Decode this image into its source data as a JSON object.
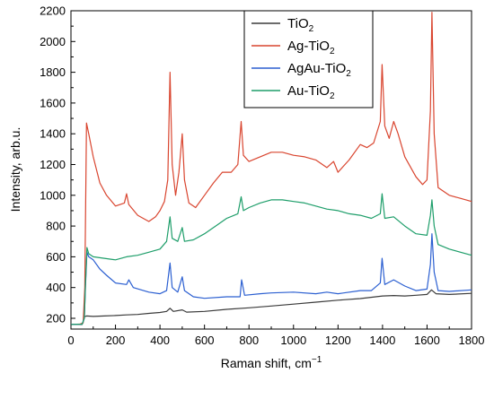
{
  "chart_data": {
    "type": "line",
    "title": "",
    "xlabel": "Raman shift, cm",
    "xlabel_superscript": "−1",
    "ylabel": "Intensity, arb.u.",
    "xlim": [
      0,
      1800
    ],
    "ylim": [
      130,
      2200
    ],
    "x_ticks": [
      0,
      200,
      400,
      600,
      800,
      1000,
      1200,
      1400,
      1600,
      1800
    ],
    "y_ticks": [
      200,
      400,
      600,
      800,
      1000,
      1200,
      1400,
      1600,
      1800,
      2000,
      2200
    ],
    "grid": false,
    "legend_position": "top-right",
    "series": [
      {
        "name": "TiO",
        "name_subscript": "2",
        "color": "#3b3b3b",
        "points": [
          [
            0,
            160
          ],
          [
            50,
            160
          ],
          [
            55,
            175
          ],
          [
            60,
            210
          ],
          [
            70,
            215
          ],
          [
            100,
            212
          ],
          [
            150,
            215
          ],
          [
            200,
            218
          ],
          [
            250,
            222
          ],
          [
            300,
            225
          ],
          [
            350,
            232
          ],
          [
            400,
            238
          ],
          [
            430,
            245
          ],
          [
            445,
            265
          ],
          [
            460,
            245
          ],
          [
            500,
            255
          ],
          [
            520,
            240
          ],
          [
            600,
            245
          ],
          [
            700,
            258
          ],
          [
            800,
            268
          ],
          [
            900,
            280
          ],
          [
            1000,
            292
          ],
          [
            1100,
            305
          ],
          [
            1200,
            318
          ],
          [
            1300,
            328
          ],
          [
            1400,
            345
          ],
          [
            1450,
            348
          ],
          [
            1500,
            345
          ],
          [
            1550,
            350
          ],
          [
            1600,
            355
          ],
          [
            1620,
            385
          ],
          [
            1640,
            360
          ],
          [
            1700,
            355
          ],
          [
            1800,
            362
          ]
        ]
      },
      {
        "name": "Ag-TiO",
        "name_subscript": "2",
        "color": "#d9452f",
        "points": [
          [
            0,
            160
          ],
          [
            40,
            162
          ],
          [
            55,
            170
          ],
          [
            62,
            400
          ],
          [
            70,
            1470
          ],
          [
            80,
            1400
          ],
          [
            100,
            1250
          ],
          [
            130,
            1080
          ],
          [
            160,
            1000
          ],
          [
            200,
            930
          ],
          [
            240,
            950
          ],
          [
            250,
            1010
          ],
          [
            260,
            940
          ],
          [
            300,
            870
          ],
          [
            350,
            830
          ],
          [
            380,
            860
          ],
          [
            400,
            900
          ],
          [
            420,
            960
          ],
          [
            435,
            1100
          ],
          [
            445,
            1800
          ],
          [
            455,
            1200
          ],
          [
            470,
            1000
          ],
          [
            485,
            1150
          ],
          [
            500,
            1400
          ],
          [
            510,
            1100
          ],
          [
            530,
            950
          ],
          [
            560,
            920
          ],
          [
            600,
            1000
          ],
          [
            640,
            1080
          ],
          [
            680,
            1150
          ],
          [
            720,
            1150
          ],
          [
            750,
            1200
          ],
          [
            765,
            1480
          ],
          [
            775,
            1260
          ],
          [
            800,
            1220
          ],
          [
            850,
            1250
          ],
          [
            900,
            1280
          ],
          [
            950,
            1280
          ],
          [
            1000,
            1260
          ],
          [
            1050,
            1250
          ],
          [
            1100,
            1230
          ],
          [
            1150,
            1180
          ],
          [
            1180,
            1220
          ],
          [
            1200,
            1150
          ],
          [
            1250,
            1230
          ],
          [
            1300,
            1330
          ],
          [
            1330,
            1310
          ],
          [
            1360,
            1340
          ],
          [
            1390,
            1480
          ],
          [
            1398,
            1850
          ],
          [
            1410,
            1450
          ],
          [
            1430,
            1370
          ],
          [
            1450,
            1480
          ],
          [
            1470,
            1400
          ],
          [
            1500,
            1250
          ],
          [
            1550,
            1120
          ],
          [
            1580,
            1070
          ],
          [
            1600,
            1100
          ],
          [
            1615,
            1550
          ],
          [
            1622,
            2190
          ],
          [
            1632,
            1400
          ],
          [
            1650,
            1050
          ],
          [
            1700,
            1000
          ],
          [
            1750,
            980
          ],
          [
            1800,
            960
          ]
        ]
      },
      {
        "name": "AgAu-TiO",
        "name_subscript": "2",
        "color": "#2b5fd1",
        "points": [
          [
            0,
            160
          ],
          [
            50,
            162
          ],
          [
            60,
            200
          ],
          [
            65,
            400
          ],
          [
            72,
            630
          ],
          [
            80,
            600
          ],
          [
            100,
            580
          ],
          [
            130,
            520
          ],
          [
            160,
            480
          ],
          [
            200,
            430
          ],
          [
            250,
            420
          ],
          [
            260,
            450
          ],
          [
            280,
            400
          ],
          [
            350,
            370
          ],
          [
            400,
            360
          ],
          [
            430,
            380
          ],
          [
            445,
            560
          ],
          [
            455,
            400
          ],
          [
            480,
            370
          ],
          [
            500,
            470
          ],
          [
            510,
            380
          ],
          [
            550,
            340
          ],
          [
            600,
            330
          ],
          [
            700,
            340
          ],
          [
            760,
            340
          ],
          [
            767,
            450
          ],
          [
            780,
            350
          ],
          [
            850,
            360
          ],
          [
            900,
            365
          ],
          [
            1000,
            370
          ],
          [
            1100,
            360
          ],
          [
            1150,
            370
          ],
          [
            1200,
            360
          ],
          [
            1300,
            380
          ],
          [
            1350,
            380
          ],
          [
            1390,
            430
          ],
          [
            1398,
            590
          ],
          [
            1410,
            420
          ],
          [
            1450,
            450
          ],
          [
            1500,
            410
          ],
          [
            1550,
            380
          ],
          [
            1600,
            390
          ],
          [
            1615,
            550
          ],
          [
            1622,
            750
          ],
          [
            1632,
            500
          ],
          [
            1650,
            380
          ],
          [
            1700,
            375
          ],
          [
            1800,
            385
          ]
        ]
      },
      {
        "name": "Au-TiO",
        "name_subscript": "2",
        "color": "#1e9e6a",
        "points": [
          [
            0,
            160
          ],
          [
            50,
            162
          ],
          [
            60,
            200
          ],
          [
            65,
            420
          ],
          [
            72,
            660
          ],
          [
            80,
            620
          ],
          [
            100,
            600
          ],
          [
            150,
            590
          ],
          [
            200,
            580
          ],
          [
            250,
            600
          ],
          [
            300,
            610
          ],
          [
            350,
            630
          ],
          [
            400,
            650
          ],
          [
            430,
            700
          ],
          [
            445,
            860
          ],
          [
            455,
            720
          ],
          [
            480,
            700
          ],
          [
            500,
            790
          ],
          [
            510,
            700
          ],
          [
            550,
            710
          ],
          [
            600,
            750
          ],
          [
            650,
            800
          ],
          [
            700,
            850
          ],
          [
            750,
            880
          ],
          [
            765,
            990
          ],
          [
            775,
            900
          ],
          [
            800,
            920
          ],
          [
            850,
            950
          ],
          [
            900,
            970
          ],
          [
            950,
            970
          ],
          [
            1000,
            960
          ],
          [
            1050,
            950
          ],
          [
            1100,
            930
          ],
          [
            1150,
            910
          ],
          [
            1200,
            900
          ],
          [
            1250,
            880
          ],
          [
            1300,
            870
          ],
          [
            1350,
            850
          ],
          [
            1390,
            880
          ],
          [
            1398,
            1010
          ],
          [
            1410,
            850
          ],
          [
            1450,
            860
          ],
          [
            1500,
            800
          ],
          [
            1550,
            750
          ],
          [
            1600,
            740
          ],
          [
            1615,
            870
          ],
          [
            1622,
            970
          ],
          [
            1632,
            800
          ],
          [
            1650,
            680
          ],
          [
            1700,
            650
          ],
          [
            1800,
            610
          ]
        ]
      }
    ]
  }
}
